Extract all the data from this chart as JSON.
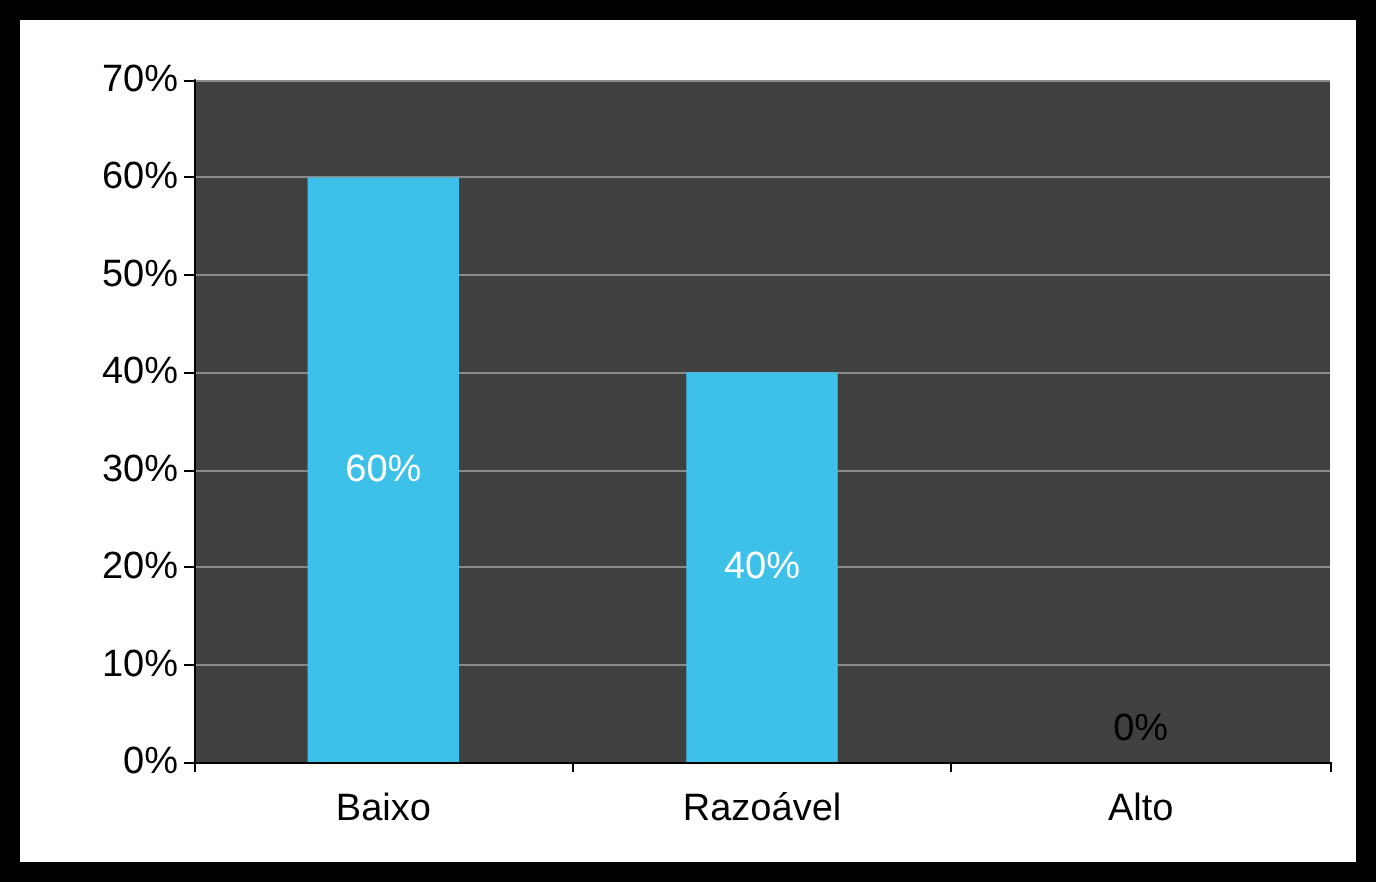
{
  "chart_data": {
    "type": "bar",
    "categories": [
      "Baixo",
      "Razoável",
      "Alto"
    ],
    "values": [
      60,
      40,
      0
    ],
    "color": "#3ec1e8",
    "value_labels": [
      "60%",
      "40%",
      "0%"
    ],
    "ylim": [
      0,
      70
    ],
    "yticks": [
      {
        "value": 0,
        "label": "0%"
      },
      {
        "value": 10,
        "label": "10%"
      },
      {
        "value": 20,
        "label": "20%"
      },
      {
        "value": 30,
        "label": "30%"
      },
      {
        "value": 40,
        "label": "40%"
      },
      {
        "value": 50,
        "label": "50%"
      },
      {
        "value": 60,
        "label": "60%"
      },
      {
        "value": 70,
        "label": "70%"
      }
    ],
    "grid": "y"
  }
}
